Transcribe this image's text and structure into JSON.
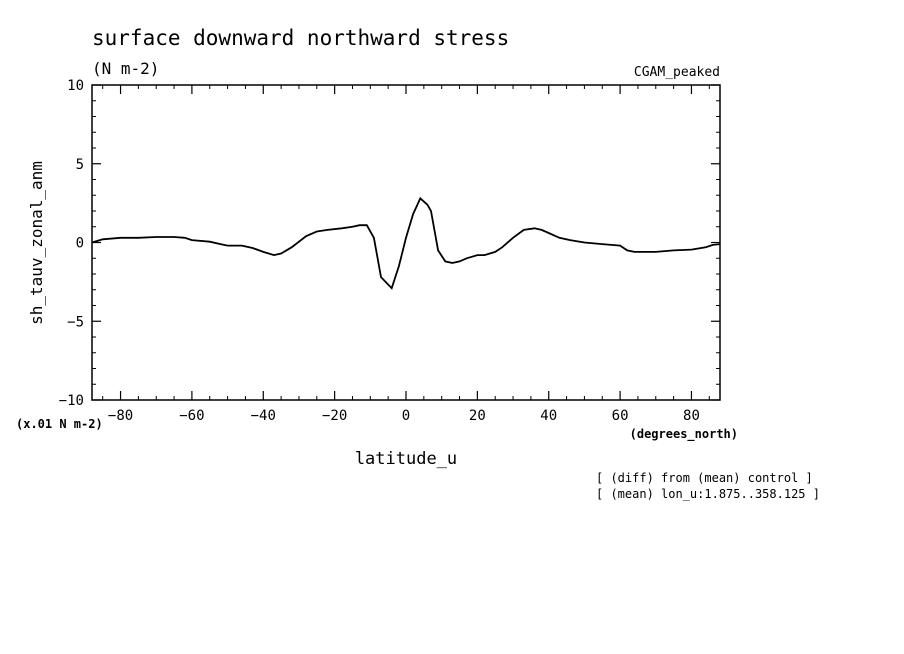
{
  "chart_data": {
    "type": "line",
    "title": "surface downward northward stress",
    "subtitle": "(N m-2)",
    "dataset_label": "CGAM_peaked",
    "ylabel": "sh_tauv_zonal_anm",
    "xlabel": "latitude_u",
    "x_units": "(degrees_north)",
    "y_units": "(x.01 N m-2)",
    "notes": [
      "[ (diff) from (mean) control ]",
      "[ (mean) lon_u:1.875..358.125 ]"
    ],
    "xlim": [
      -88,
      88
    ],
    "ylim": [
      -10,
      10
    ],
    "x_ticks": [
      -80,
      -60,
      -40,
      -20,
      0,
      20,
      40,
      60,
      80
    ],
    "x_tick_labels": [
      "−80",
      "−60",
      "−40",
      "−20",
      "0",
      "20",
      "40",
      "60",
      "80"
    ],
    "y_ticks": [
      -10,
      -5,
      0,
      5,
      10
    ],
    "y_tick_labels": [
      "−10",
      "−5",
      "0",
      "5",
      "10"
    ],
    "grid": false,
    "series": [
      {
        "x": [
          -88,
          -85,
          -80,
          -75,
          -70,
          -65,
          -62,
          -60,
          -55,
          -52,
          -50,
          -46,
          -43,
          -40,
          -37,
          -35,
          -32,
          -28,
          -25,
          -22,
          -18,
          -15,
          -13,
          -11,
          -9,
          -7,
          -4,
          -2,
          0,
          2,
          4,
          6,
          7,
          9,
          11,
          13,
          15,
          17,
          20,
          22,
          25,
          27,
          30,
          33,
          36,
          38,
          40,
          43,
          46,
          50,
          55,
          60,
          62,
          64,
          66,
          70,
          75,
          80,
          84,
          86,
          88
        ],
        "y": [
          0.0,
          0.2,
          0.3,
          0.3,
          0.35,
          0.35,
          0.3,
          0.15,
          0.05,
          -0.1,
          -0.2,
          -0.2,
          -0.35,
          -0.6,
          -0.8,
          -0.7,
          -0.3,
          0.4,
          0.7,
          0.8,
          0.9,
          1.0,
          1.1,
          1.1,
          0.3,
          -2.2,
          -2.9,
          -1.5,
          0.3,
          1.8,
          2.8,
          2.4,
          2.0,
          -0.5,
          -1.2,
          -1.3,
          -1.2,
          -1.0,
          -0.8,
          -0.8,
          -0.6,
          -0.3,
          0.3,
          0.8,
          0.9,
          0.8,
          0.6,
          0.3,
          0.15,
          0.0,
          -0.1,
          -0.2,
          -0.5,
          -0.6,
          -0.6,
          -0.6,
          -0.5,
          -0.45,
          -0.3,
          -0.15,
          -0.1
        ]
      }
    ]
  }
}
